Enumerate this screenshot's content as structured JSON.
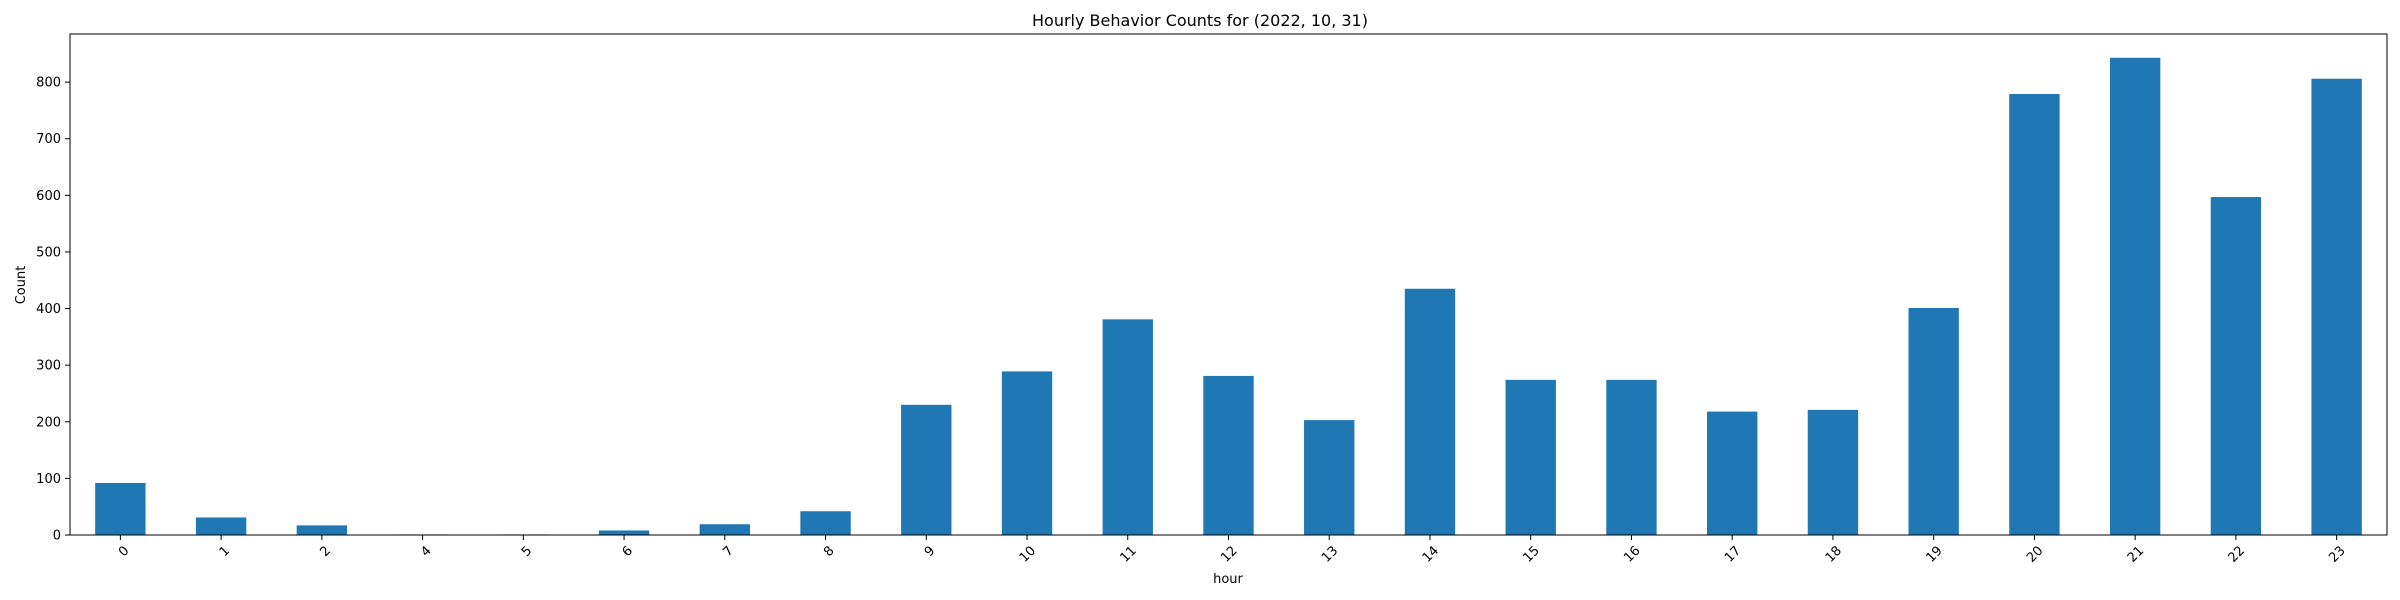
{
  "chart_data": {
    "type": "bar",
    "title": "Hourly Behavior Counts for (2022, 10, 31)",
    "xlabel": "hour",
    "ylabel": "Count",
    "categories": [
      "0",
      "1",
      "2",
      "4",
      "5",
      "6",
      "7",
      "8",
      "9",
      "10",
      "11",
      "12",
      "13",
      "14",
      "15",
      "16",
      "17",
      "18",
      "19",
      "20",
      "21",
      "22",
      "23"
    ],
    "values": [
      92,
      31,
      17,
      1,
      1,
      8,
      19,
      42,
      230,
      289,
      381,
      281,
      203,
      435,
      274,
      274,
      218,
      221,
      401,
      779,
      843,
      597,
      806
    ],
    "ylim": [
      0,
      885
    ],
    "yticks": [
      0,
      100,
      200,
      300,
      400,
      500,
      600,
      700,
      800
    ],
    "grid": false,
    "legend": "none",
    "bar_color": "#1f77b4"
  }
}
